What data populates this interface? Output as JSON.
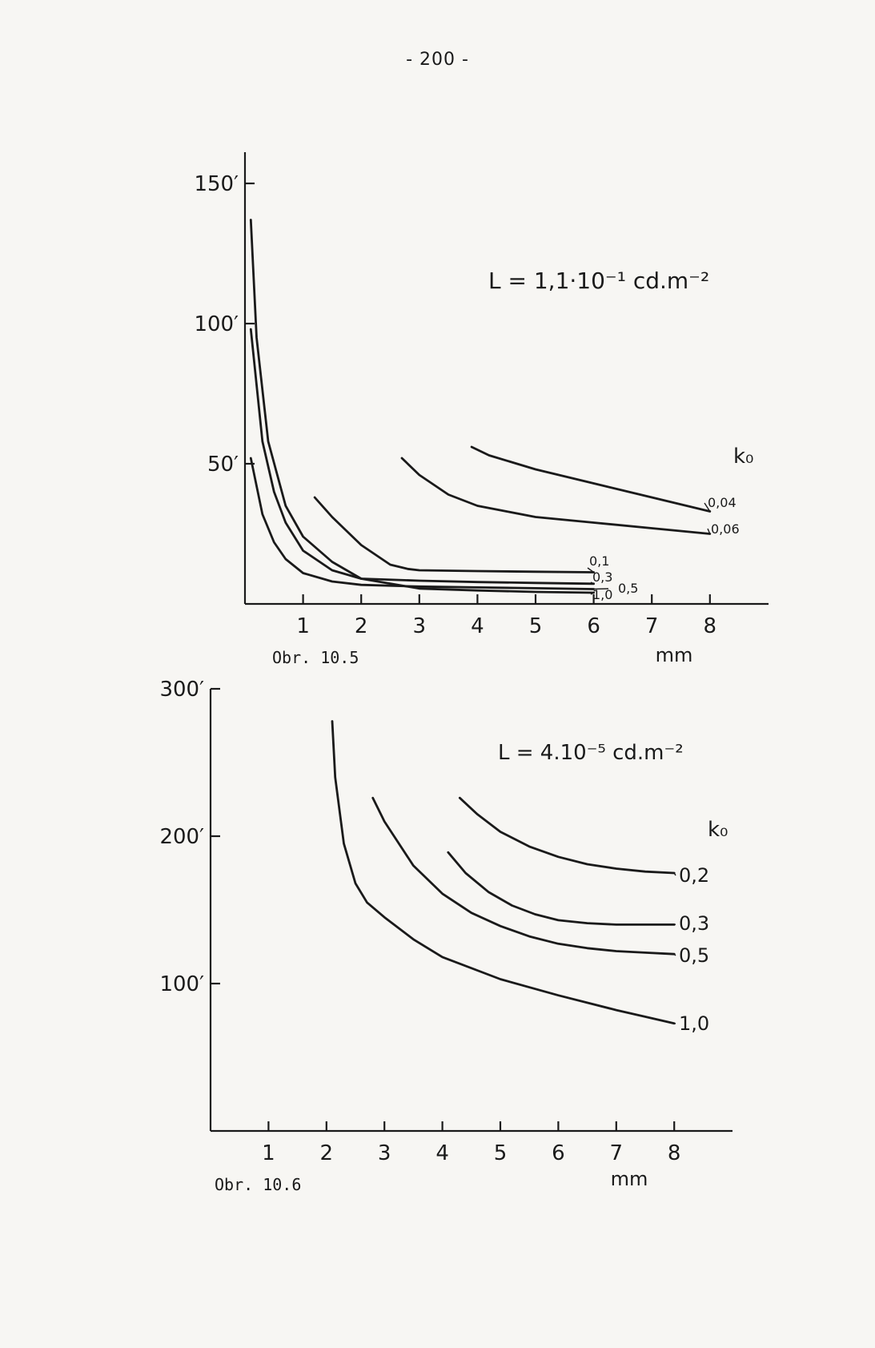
{
  "page": {
    "number": "- 200 -"
  },
  "chart_data": [
    {
      "type": "line",
      "caption": "Obr. 10.5",
      "title": "L = 1,1·10⁻¹ cd.m⁻²",
      "xlabel": "mm",
      "ylabel": "",
      "xlim": [
        0,
        9
      ],
      "ylim": [
        0,
        165
      ],
      "xticks": [
        1,
        2,
        3,
        4,
        5,
        6,
        7,
        8
      ],
      "xtick_labels": [
        "1",
        "2",
        "3",
        "4",
        "5",
        "6",
        "7",
        "8"
      ],
      "yticks": [
        50,
        100,
        150
      ],
      "ytick_labels": [
        "50′",
        "100′",
        "150′"
      ],
      "legend_title": "k₀",
      "legend_placement": "right",
      "grid": false,
      "series": [
        {
          "name": "0,04",
          "x": [
            3.9,
            4.2,
            5.0,
            6.0,
            7.0,
            8.0
          ],
          "y": [
            56,
            53,
            48,
            43,
            38,
            33
          ]
        },
        {
          "name": "0,06",
          "x": [
            2.7,
            3.0,
            3.5,
            4.0,
            4.5,
            5.0,
            6.0,
            7.0,
            8.0
          ],
          "y": [
            52,
            46,
            39,
            35,
            33,
            31,
            29,
            27,
            25
          ]
        },
        {
          "name": "0,1",
          "x": [
            1.2,
            1.5,
            2.0,
            2.5,
            2.8,
            3.0,
            4.0,
            5.0,
            6.0
          ],
          "y": [
            38,
            31,
            21,
            14,
            12.5,
            12,
            11.7,
            11.5,
            11.3
          ]
        },
        {
          "name": "0,3",
          "x": [
            0.1,
            0.3,
            0.5,
            0.7,
            1.0,
            1.5,
            2.0,
            3.0,
            4.0,
            5.0,
            6.0
          ],
          "y": [
            98,
            58,
            40,
            29,
            19,
            12,
            9,
            8.3,
            7.8,
            7.5,
            7.2
          ]
        },
        {
          "name": "0,5",
          "x": [
            0.1,
            0.3,
            0.5,
            0.7,
            1.0,
            1.5,
            2.0,
            3.0,
            4.0,
            5.0,
            6.0
          ],
          "y": [
            52,
            32,
            22,
            16,
            11,
            8,
            6.8,
            6.2,
            5.9,
            5.6,
            5.3
          ]
        },
        {
          "name": "1,0",
          "x": [
            0.1,
            0.2,
            0.4,
            0.7,
            1.0,
            1.5,
            2.0,
            3.0,
            4.0,
            5.0,
            6.0
          ],
          "y": [
            137,
            95,
            58,
            35,
            24,
            15,
            9,
            5.5,
            4.8,
            4.3,
            4.0
          ]
        }
      ]
    },
    {
      "type": "line",
      "caption": "Obr. 10.6",
      "title": "L = 4.10⁻⁵ cd.m⁻²",
      "xlabel": "mm",
      "ylabel": "",
      "xlim": [
        0,
        9
      ],
      "ylim": [
        0,
        320
      ],
      "xticks": [
        1,
        2,
        3,
        4,
        5,
        6,
        7,
        8
      ],
      "xtick_labels": [
        "1",
        "2",
        "3",
        "4",
        "5",
        "6",
        "7",
        "8"
      ],
      "yticks": [
        100,
        200,
        300
      ],
      "ytick_labels": [
        "100′",
        "200′",
        "300′"
      ],
      "legend_title": "k₀",
      "legend_placement": "right",
      "grid": false,
      "series": [
        {
          "name": "0,2",
          "x": [
            4.3,
            4.6,
            5.0,
            5.5,
            6.0,
            6.5,
            7.0,
            7.5,
            8.0
          ],
          "y": [
            226,
            215,
            203,
            193,
            186,
            181,
            178,
            176,
            175
          ]
        },
        {
          "name": "0,3",
          "x": [
            4.1,
            4.4,
            4.8,
            5.2,
            5.6,
            6.0,
            6.5,
            7.0,
            7.5,
            8.0
          ],
          "y": [
            189,
            175,
            162,
            153,
            147,
            143,
            141,
            140,
            140,
            140
          ]
        },
        {
          "name": "0,5",
          "x": [
            2.8,
            3.0,
            3.5,
            4.0,
            4.5,
            5.0,
            5.5,
            6.0,
            6.5,
            7.0,
            7.5,
            8.0
          ],
          "y": [
            226,
            210,
            180,
            161,
            148,
            139,
            132,
            127,
            124,
            122,
            121,
            120
          ]
        },
        {
          "name": "1,0",
          "x": [
            2.1,
            2.15,
            2.3,
            2.5,
            2.7,
            3.0,
            3.5,
            4.0,
            5.0,
            6.0,
            7.0,
            8.0
          ],
          "y": [
            278,
            240,
            195,
            168,
            155,
            145,
            130,
            118,
            103,
            92,
            82,
            73
          ]
        }
      ]
    }
  ]
}
